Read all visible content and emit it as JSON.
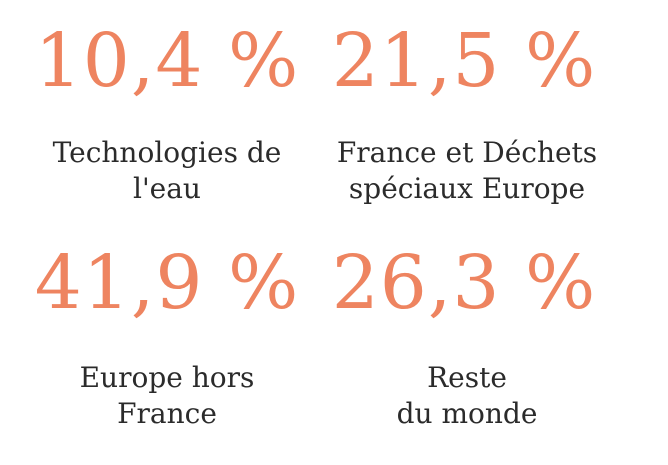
{
  "colors": {
    "accent": "#ee8460",
    "text": "#2b2b2b",
    "background": "#ffffff"
  },
  "stats": [
    {
      "value": "10,4 %",
      "label": "Technologies de\nl'eau"
    },
    {
      "value": "21,5 %",
      "label": "France et Déchets\nspéciaux Europe"
    },
    {
      "value": "41,9 %",
      "label": "Europe hors\nFrance"
    },
    {
      "value": "26,3 %",
      "label": "Reste\ndu monde"
    }
  ]
}
